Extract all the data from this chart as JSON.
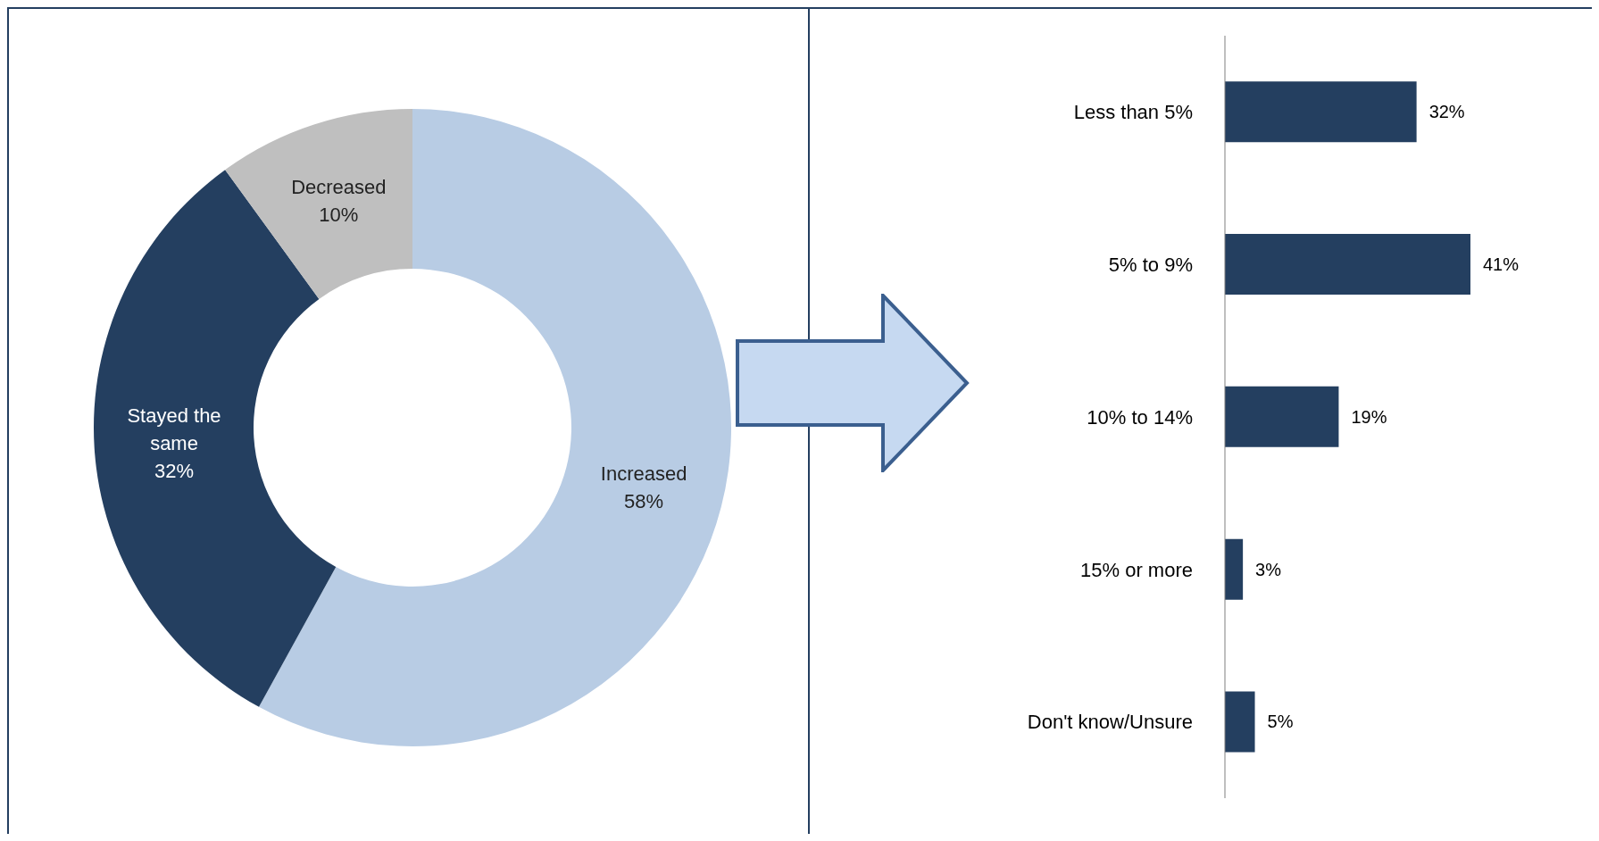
{
  "chart_data": [
    {
      "type": "donut",
      "categories": [
        "Increased",
        "Stayed the same",
        "Decreased"
      ],
      "values": [
        58,
        32,
        10
      ],
      "colors": [
        "#b8cce4",
        "#243f60",
        "#bfbfbf"
      ],
      "value_labels": [
        "58%",
        "32%",
        "10%"
      ]
    },
    {
      "type": "bar",
      "orientation": "horizontal",
      "categories": [
        "Less than 5%",
        "5% to 9%",
        "10% to 14%",
        "15% or more",
        "Don't know/Unsure"
      ],
      "values": [
        32,
        41,
        19,
        3,
        5
      ],
      "color": "#243f60",
      "value_labels": [
        "32%",
        "41%",
        "19%",
        "3%",
        "5%"
      ]
    }
  ]
}
